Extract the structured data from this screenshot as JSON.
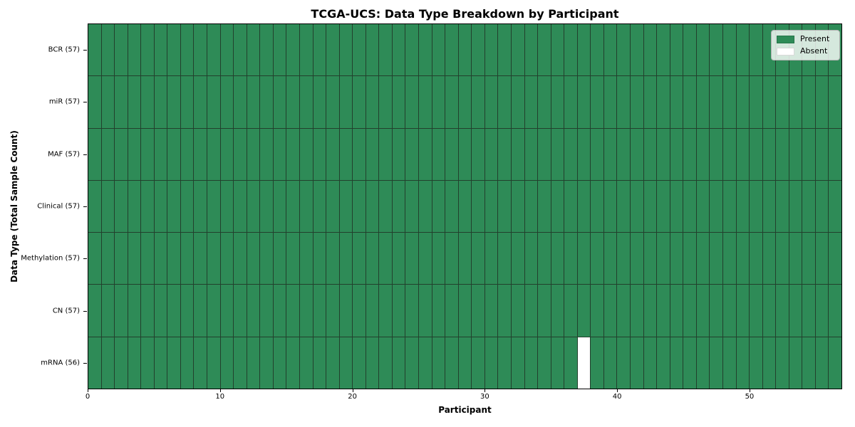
{
  "chart_data": {
    "type": "heatmap",
    "title": "TCGA-UCS: Data Type Breakdown by Participant",
    "xlabel": "Participant",
    "ylabel": "Data Type (Total Sample Count)",
    "n_participants": 57,
    "x_ticks": [
      0,
      10,
      20,
      30,
      40,
      50
    ],
    "x_range": [
      0,
      57
    ],
    "grid": "cell-borders",
    "legend_position": "upper-right",
    "rows": [
      {
        "name": "BCR",
        "label": "BCR (57)",
        "total": 57,
        "absent_participants": []
      },
      {
        "name": "miR",
        "label": "miR (57)",
        "total": 57,
        "absent_participants": []
      },
      {
        "name": "MAF",
        "label": "MAF (57)",
        "total": 57,
        "absent_participants": []
      },
      {
        "name": "Clinical",
        "label": "Clinical (57)",
        "total": 57,
        "absent_participants": []
      },
      {
        "name": "Methylation",
        "label": "Methylation (57)",
        "total": 57,
        "absent_participants": []
      },
      {
        "name": "CN",
        "label": "CN (57)",
        "total": 57,
        "absent_participants": []
      },
      {
        "name": "mRNA",
        "label": "mRNA (56)",
        "total": 56,
        "absent_participants": [
          37
        ]
      }
    ],
    "legend": [
      {
        "label": "Present",
        "color": "#2E8B57"
      },
      {
        "label": "Absent",
        "color": "#FFFFFF"
      }
    ],
    "colors": {
      "present": "#2E8B57",
      "absent": "#FFFFFF",
      "grid_line": "#22402d",
      "axis": "#000000",
      "background": "#FFFFFF"
    }
  }
}
